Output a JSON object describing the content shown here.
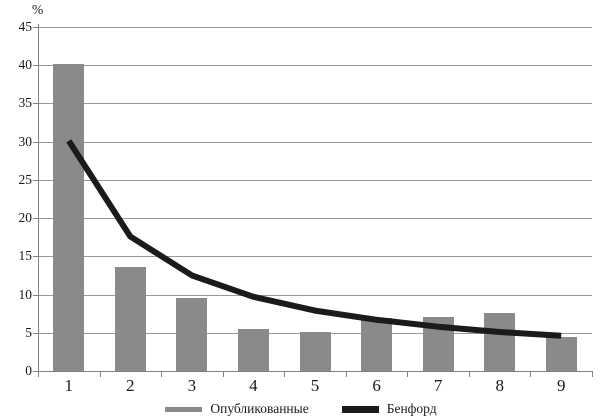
{
  "chart_data": {
    "type": "bar",
    "title": "",
    "ylabel": "%",
    "xlabel": "",
    "categories": [
      "1",
      "2",
      "3",
      "4",
      "5",
      "6",
      "7",
      "8",
      "9"
    ],
    "series": [
      {
        "name": "Опубликованные",
        "kind": "bar",
        "color": "#8a8a8a",
        "values": [
          40.2,
          13.6,
          9.5,
          5.5,
          5.1,
          6.9,
          7.1,
          7.6,
          4.5
        ]
      },
      {
        "name": "Бенфорд",
        "kind": "line",
        "color": "#1b1b1b",
        "values": [
          30.1,
          17.6,
          12.5,
          9.7,
          7.9,
          6.7,
          5.8,
          5.1,
          4.6
        ]
      }
    ],
    "ylim": [
      0,
      45
    ],
    "yticks": [
      0,
      5,
      10,
      15,
      20,
      25,
      30,
      35,
      40,
      45
    ],
    "grid": "horizontal",
    "legend_position": "bottom",
    "colors": {
      "background": "#ffffff",
      "grid": "#999999",
      "axis": "#808080",
      "text": "#1a1a1a"
    }
  }
}
